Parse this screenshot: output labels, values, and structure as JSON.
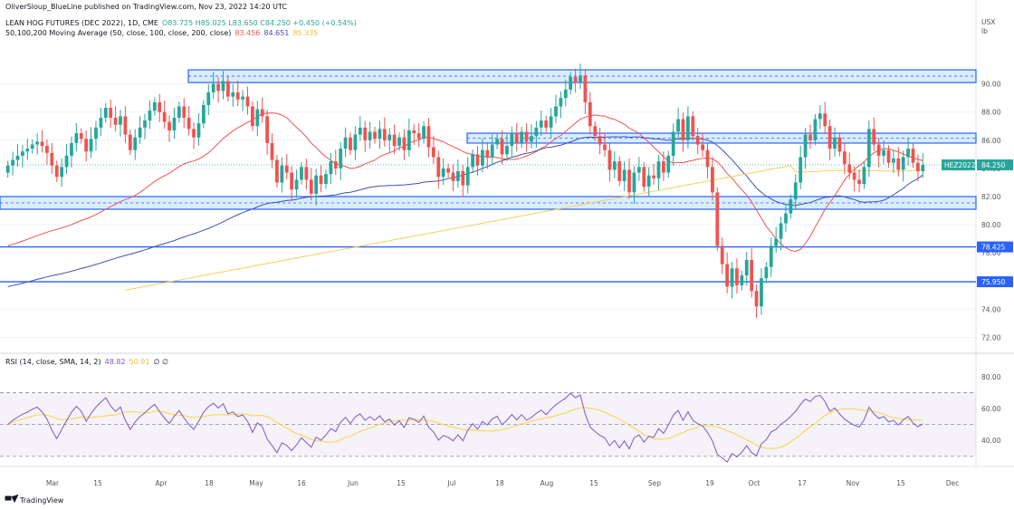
{
  "header": {
    "published": "OliverSloup_BlueLine published on TradingView.com, Nov 23, 2022 14:20 UTC",
    "symbol_line": "LEAN HOG FUTURES (DEC 2022), 1D, CME",
    "ohlc": "O83.725 H85.025 L83.650 C84.250 +0.450 (+0.54%)",
    "ma_label": "50,100,200 Moving Average (50, close, 100, close, 200, close)",
    "ma50": "83.456",
    "ma100": "84.651",
    "ma200": "85.335",
    "rsi_label": "RSI (14, close, SMA, 14, 2)",
    "rsi_val": "48.82",
    "rsi_ma": "50.91",
    "rsi_extra": "∅ ∅"
  },
  "currency": "USX",
  "unit": "lb",
  "symbol_tag": "HEZ2022",
  "price_tag": "84.250",
  "level1": "78.425",
  "level2": "75.950",
  "logo_text": "TradingView",
  "colors": {
    "up": "#26a69a",
    "down": "#ef5350",
    "ma50": "#ef5350",
    "ma100": "#3f51b5",
    "ma200": "#f0d25c",
    "level": "#2962ff",
    "zone": "#bbdefb",
    "rsi": "#7e57c2",
    "rsi_ma": "#f5d742"
  },
  "chart_data": {
    "type": "candlestick",
    "title": "LEAN HOG FUTURES (DEC 2022), 1D, CME",
    "ylim": [
      71,
      93
    ],
    "yticks": [
      72,
      74,
      76,
      78,
      80,
      82,
      84,
      86,
      88,
      90
    ],
    "x_labels": [
      "Mar",
      "15",
      "Apr",
      "18",
      "May",
      "16",
      "Jun",
      "15",
      "Jul",
      "18",
      "Aug",
      "15",
      "Sep",
      "19",
      "Oct",
      "17",
      "Nov",
      "15",
      "Dec"
    ],
    "closes": [
      84.2,
      84.6,
      84.9,
      85.2,
      85.4,
      85.7,
      85.9,
      85.6,
      85.1,
      84.2,
      83.4,
      84.1,
      84.9,
      85.8,
      86.5,
      86.1,
      85.2,
      86.1,
      86.9,
      87.6,
      88.3,
      87.6,
      87.1,
      87.7,
      86.4,
      85.3,
      86.2,
      86.9,
      87.4,
      88.1,
      88.7,
      88.0,
      87.3,
      86.7,
      87.6,
      88.4,
      87.6,
      86.8,
      86.2,
      87.2,
      88.5,
      89.4,
      90.0,
      89.5,
      90.2,
      89.1,
      89.4,
      88.9,
      89.1,
      88.4,
      87.0,
      88.2,
      87.7,
      85.8,
      84.6,
      83.0,
      84.2,
      83.7,
      82.5,
      83.2,
      84.1,
      83.2,
      82.2,
      83.5,
      82.9,
      83.6,
      84.5,
      84.0,
      85.4,
      86.2,
      85.3,
      86.4,
      86.9,
      86.0,
      86.6,
      86.1,
      86.8,
      86.0,
      86.4,
      85.6,
      86.2,
      85.3,
      86.7,
      86.5,
      86.1,
      87.0,
      85.5,
      84.8,
      83.4,
      84.0,
      83.7,
      83.1,
      83.8,
      82.8,
      84.1,
      85.0,
      84.2,
      85.3,
      84.8,
      85.7,
      86.1,
      85.0,
      85.6,
      86.5,
      85.8,
      86.6,
      85.9,
      86.3,
      86.9,
      87.4,
      86.9,
      87.7,
      88.4,
      89.0,
      89.6,
      90.5,
      90.1,
      90.6,
      88.7,
      87.0,
      86.3,
      85.7,
      85.3,
      83.9,
      84.5,
      83.1,
      83.9,
      82.3,
      83.7,
      84.1,
      82.7,
      83.5,
      83.3,
      84.5,
      83.7,
      84.9,
      86.6,
      87.5,
      86.0,
      87.7,
      86.3,
      85.7,
      85.3,
      84.1,
      82.3,
      78.5,
      77.2,
      75.6,
      76.9,
      75.7,
      76.4,
      77.5,
      75.3,
      74.2,
      76.2,
      77.0,
      78.5,
      79.0,
      80.1,
      80.8,
      81.8,
      83.0,
      84.8,
      86.4,
      86.0,
      87.5,
      87.9,
      87.0,
      85.4,
      86.2,
      85.2,
      84.3,
      83.7,
      83.2,
      82.9,
      84.1,
      86.8,
      85.7,
      84.9,
      85.3,
      84.4,
      84.7,
      83.9,
      84.8,
      85.4,
      84.4,
      83.8,
      84.25
    ],
    "ma50_ends": [
      78.5,
      83.456
    ],
    "levels": [
      78.425,
      75.95
    ],
    "zones": [
      [
        90.1,
        91.0
      ],
      [
        85.8,
        86.5
      ],
      [
        81.1,
        82.0
      ]
    ],
    "rsi": {
      "ylim": [
        25,
        87
      ],
      "yticks": [
        40,
        60,
        80
      ],
      "band": [
        30,
        70
      ],
      "mid": 50,
      "last": 48.82,
      "last_ma": 50.91
    }
  }
}
